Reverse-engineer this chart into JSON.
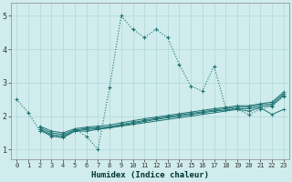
{
  "title": "",
  "xlabel": "Humidex (Indice chaleur)",
  "bg_color": "#d0ecec",
  "line_color": "#1a7070",
  "grid_color": "#b0d8d8",
  "xlim": [
    -0.5,
    23.5
  ],
  "ylim": [
    0.7,
    5.4
  ],
  "yticks": [
    1,
    2,
    3,
    4,
    5
  ],
  "xticks": [
    0,
    1,
    2,
    3,
    4,
    5,
    6,
    7,
    8,
    9,
    10,
    11,
    12,
    13,
    14,
    15,
    16,
    17,
    18,
    19,
    20,
    21,
    22,
    23
  ],
  "s1_x": [
    0,
    1,
    2,
    3,
    4,
    5,
    6,
    7,
    8,
    9,
    10,
    11,
    12,
    13,
    14,
    15,
    16,
    17,
    18,
    19,
    20,
    21,
    22,
    23
  ],
  "s1_y": [
    2.5,
    2.1,
    1.55,
    1.4,
    1.4,
    1.6,
    1.4,
    1.0,
    2.85,
    5.0,
    4.6,
    4.35,
    4.6,
    4.35,
    3.55,
    2.9,
    2.75,
    3.5,
    2.25,
    2.2,
    2.05,
    2.2,
    2.3,
    2.6
  ],
  "s2_x": [
    2,
    3,
    4,
    5,
    6,
    7,
    19,
    20,
    21,
    22,
    23
  ],
  "s2_y": [
    1.6,
    1.4,
    1.35,
    1.55,
    1.55,
    1.6,
    2.2,
    2.15,
    2.25,
    2.05,
    2.2
  ],
  "s3_x": [
    2,
    3,
    4,
    5,
    6,
    7,
    8,
    9,
    10,
    11,
    12,
    13,
    14,
    15,
    16,
    17,
    18,
    19,
    20,
    21,
    22,
    23
  ],
  "s3_y": [
    1.6,
    1.45,
    1.4,
    1.55,
    1.6,
    1.62,
    1.65,
    1.72,
    1.78,
    1.84,
    1.9,
    1.95,
    2.0,
    2.05,
    2.1,
    2.15,
    2.18,
    2.22,
    2.22,
    2.28,
    2.32,
    2.62
  ],
  "s4_x": [
    2,
    3,
    4,
    5,
    6,
    7,
    8,
    9,
    10,
    11,
    12,
    13,
    14,
    15,
    16,
    17,
    18,
    19,
    20,
    21,
    22,
    23
  ],
  "s4_y": [
    1.65,
    1.5,
    1.45,
    1.58,
    1.63,
    1.65,
    1.68,
    1.75,
    1.81,
    1.87,
    1.93,
    1.98,
    2.03,
    2.08,
    2.13,
    2.18,
    2.22,
    2.27,
    2.27,
    2.33,
    2.37,
    2.67
  ],
  "s5_x": [
    2,
    3,
    4,
    5,
    6,
    7,
    8,
    9,
    10,
    11,
    12,
    13,
    14,
    15,
    16,
    17,
    18,
    19,
    20,
    21,
    22,
    23
  ],
  "s5_y": [
    1.7,
    1.55,
    1.5,
    1.62,
    1.67,
    1.7,
    1.73,
    1.8,
    1.86,
    1.92,
    1.97,
    2.02,
    2.07,
    2.12,
    2.17,
    2.22,
    2.26,
    2.31,
    2.31,
    2.37,
    2.42,
    2.72
  ]
}
